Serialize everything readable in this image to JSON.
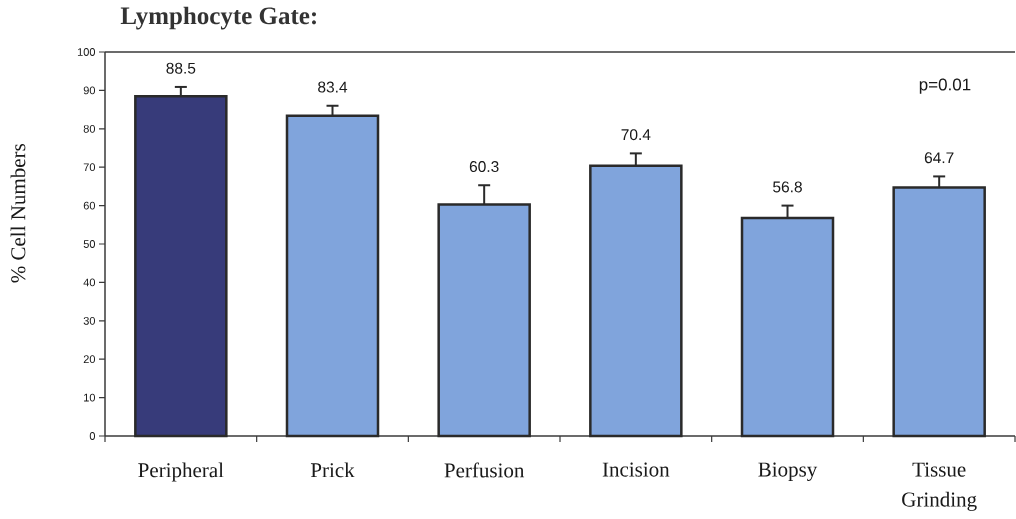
{
  "chart_data": {
    "type": "bar",
    "title": "Lymphocyte Gate:",
    "ylabel": "% Cell Numbers",
    "categories": [
      "Peripheral",
      "Prick",
      "Perfusion",
      "Incision",
      "Biopsy",
      "Tissue Grinding"
    ],
    "values": [
      88.5,
      83.4,
      60.3,
      70.4,
      56.8,
      64.7
    ],
    "colors": [
      "#373b7a",
      "#80a4dc",
      "#80a4dc",
      "#80a4dc",
      "#80a4dc",
      "#80a4dc"
    ],
    "errors": [
      [
        88.5,
        90.9
      ],
      [
        83.4,
        86.0
      ],
      [
        60.3,
        65.3
      ],
      [
        70.4,
        73.6
      ],
      [
        56.8,
        60.0
      ],
      [
        64.7,
        67.6
      ]
    ],
    "ylim": [
      0,
      100
    ],
    "yticks": [
      0,
      10,
      20,
      30,
      40,
      50,
      60,
      70,
      80,
      90,
      100
    ],
    "data_labels": true,
    "annotations": [
      "p=0.01"
    ]
  }
}
